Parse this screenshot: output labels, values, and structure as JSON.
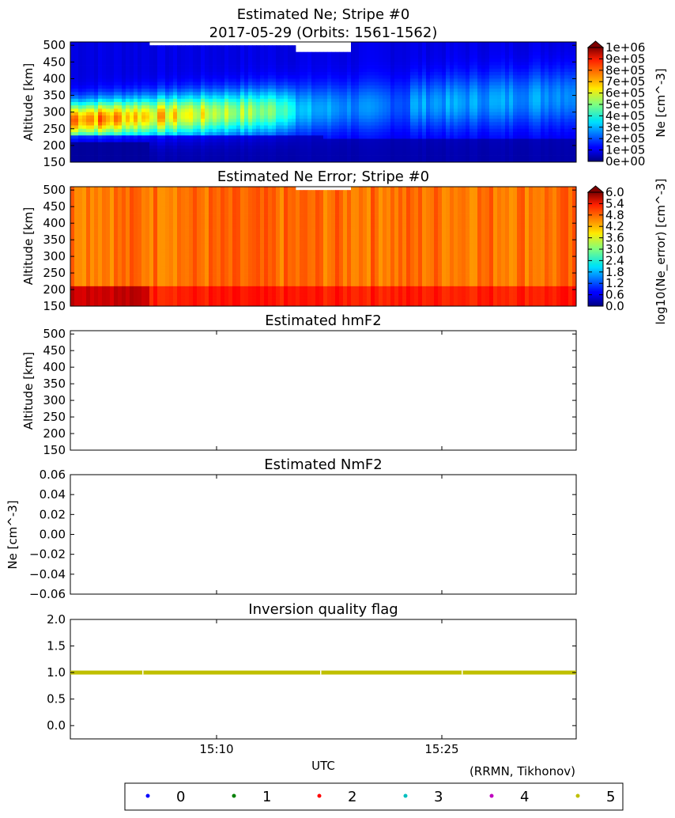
{
  "figure": {
    "attribution": "(RRMN, Tikhonov)",
    "xlabel": "UTC",
    "x_ticks": [
      "15:10",
      "15:25"
    ]
  },
  "legend": {
    "entries": [
      {
        "label": "0",
        "color": "#0000ff"
      },
      {
        "label": "1",
        "color": "#008000"
      },
      {
        "label": "2",
        "color": "#ff0000"
      },
      {
        "label": "3",
        "color": "#00bfbf"
      },
      {
        "label": "4",
        "color": "#bf00bf"
      },
      {
        "label": "5",
        "color": "#bfbf00"
      }
    ]
  },
  "chart_data": [
    {
      "type": "heatmap",
      "title": "Estimated Ne; Stripe #0",
      "subtitle": "2017-05-29 (Orbits: 1561-1562)",
      "ylabel": "Altitude [km]",
      "ylim": [
        150,
        510
      ],
      "y_ticks": [
        150,
        200,
        250,
        300,
        350,
        400,
        450,
        500
      ],
      "colorbar": {
        "label": "Ne [cm^-3]",
        "colormap": "jet",
        "extend": "max",
        "vmin": 0,
        "vmax": 1000000,
        "ticks": [
          "0e+00",
          "1e+05",
          "2e+05",
          "3e+05",
          "4e+05",
          "5e+05",
          "6e+05",
          "7e+05",
          "8e+05",
          "9e+05",
          "1e+06"
        ]
      },
      "description_values": {
        "peak_region_altitude_km": [
          240,
          340
        ],
        "peak_value": 650000,
        "background_value": 150000
      }
    },
    {
      "type": "heatmap",
      "title": "Estimated Ne Error; Stripe #0",
      "ylabel": "Altitude [km]",
      "ylim": [
        150,
        510
      ],
      "y_ticks": [
        150,
        200,
        250,
        300,
        350,
        400,
        450,
        500
      ],
      "colorbar": {
        "label": "log10(Ne_error) [cm^-3]",
        "colormap": "jet",
        "extend": "max",
        "vmin": 0,
        "vmax": 6,
        "ticks": [
          "0.0",
          "0.6",
          "1.2",
          "1.8",
          "2.4",
          "3.0",
          "3.6",
          "4.2",
          "4.8",
          "5.4",
          "6.0"
        ]
      },
      "description_values": {
        "typical_value": 4.6,
        "low_altitude_value": 5.5
      }
    },
    {
      "type": "scatter",
      "title": "Estimated hmF2",
      "ylabel": "Altitude [km]",
      "ylim": [
        150,
        510
      ],
      "y_ticks": [
        150,
        200,
        250,
        300,
        350,
        400,
        450,
        500
      ],
      "series": []
    },
    {
      "type": "scatter",
      "title": "Estimated NmF2",
      "ylabel": "Ne [cm^-3]",
      "ylim": [
        -0.06,
        0.06
      ],
      "y_ticks": [
        "0.06",
        "0.04",
        "0.02",
        "0.00",
        "−0.02",
        "−0.04",
        "−0.06"
      ],
      "series": []
    },
    {
      "type": "scatter",
      "title": "Inversion quality flag",
      "ylim": [
        -0.25,
        2.0
      ],
      "y_ticks": [
        "2.0",
        "1.5",
        "1.0",
        "0.5",
        "0.0"
      ],
      "series": [
        {
          "name": "5",
          "color": "#bfbf00",
          "constant_y": 1.0
        }
      ]
    }
  ]
}
